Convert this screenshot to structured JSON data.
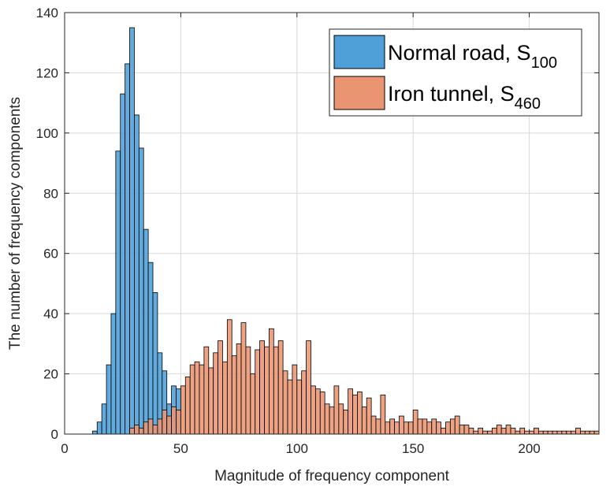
{
  "chart_data": {
    "type": "bar",
    "title": "",
    "xlabel": "Magnitude of frequency component",
    "ylabel": "The number of frequency components",
    "xlim": [
      0,
      230
    ],
    "ylim": [
      0,
      140
    ],
    "x_ticks": [
      0,
      50,
      100,
      150,
      200
    ],
    "y_ticks": [
      0,
      20,
      40,
      60,
      80,
      100,
      120,
      140
    ],
    "grid": true,
    "legend_position": "top-right",
    "bin_width": 2,
    "series": [
      {
        "name_text": "Normal road, S",
        "name_sub": "100",
        "color": "#4f9fd8",
        "bins": [
          [
            12,
            1
          ],
          [
            14,
            4
          ],
          [
            16,
            10
          ],
          [
            18,
            23
          ],
          [
            20,
            40
          ],
          [
            22,
            94
          ],
          [
            24,
            113
          ],
          [
            26,
            123
          ],
          [
            28,
            135
          ],
          [
            30,
            106
          ],
          [
            32,
            95
          ],
          [
            34,
            68
          ],
          [
            36,
            57
          ],
          [
            38,
            47
          ],
          [
            40,
            27
          ],
          [
            42,
            21
          ],
          [
            44,
            10
          ],
          [
            46,
            16
          ],
          [
            48,
            15
          ]
        ]
      },
      {
        "name_text": "Iron tunnel, S",
        "name_sub": "460",
        "color": "#e99572",
        "bins": [
          [
            28,
            2
          ],
          [
            30,
            3
          ],
          [
            32,
            2
          ],
          [
            34,
            4
          ],
          [
            36,
            5
          ],
          [
            38,
            3
          ],
          [
            40,
            5
          ],
          [
            42,
            8
          ],
          [
            44,
            6
          ],
          [
            46,
            9
          ],
          [
            48,
            8
          ],
          [
            50,
            16
          ],
          [
            52,
            19
          ],
          [
            54,
            23
          ],
          [
            56,
            24
          ],
          [
            58,
            23
          ],
          [
            60,
            29
          ],
          [
            62,
            22
          ],
          [
            64,
            27
          ],
          [
            66,
            31
          ],
          [
            68,
            24
          ],
          [
            70,
            38
          ],
          [
            72,
            26
          ],
          [
            74,
            30
          ],
          [
            76,
            37
          ],
          [
            78,
            29
          ],
          [
            80,
            20
          ],
          [
            82,
            28
          ],
          [
            84,
            31
          ],
          [
            86,
            29
          ],
          [
            88,
            35
          ],
          [
            90,
            29
          ],
          [
            92,
            31
          ],
          [
            94,
            21
          ],
          [
            96,
            18
          ],
          [
            98,
            23
          ],
          [
            100,
            18
          ],
          [
            102,
            21
          ],
          [
            104,
            31
          ],
          [
            106,
            16
          ],
          [
            108,
            15
          ],
          [
            110,
            14
          ],
          [
            112,
            10
          ],
          [
            114,
            9
          ],
          [
            116,
            16
          ],
          [
            118,
            10
          ],
          [
            120,
            8
          ],
          [
            122,
            15
          ],
          [
            124,
            13
          ],
          [
            126,
            14
          ],
          [
            128,
            9
          ],
          [
            130,
            12
          ],
          [
            132,
            6
          ],
          [
            134,
            5
          ],
          [
            136,
            13
          ],
          [
            138,
            4
          ],
          [
            140,
            5
          ],
          [
            142,
            4
          ],
          [
            144,
            6
          ],
          [
            146,
            4
          ],
          [
            148,
            4
          ],
          [
            150,
            8
          ],
          [
            152,
            5
          ],
          [
            154,
            5
          ],
          [
            156,
            4
          ],
          [
            158,
            5
          ],
          [
            160,
            4
          ],
          [
            162,
            2
          ],
          [
            164,
            4
          ],
          [
            166,
            5
          ],
          [
            168,
            6
          ],
          [
            170,
            3
          ],
          [
            172,
            3
          ],
          [
            174,
            2
          ],
          [
            176,
            1
          ],
          [
            178,
            2
          ],
          [
            180,
            1
          ],
          [
            182,
            1
          ],
          [
            184,
            2
          ],
          [
            186,
            3
          ],
          [
            188,
            2
          ],
          [
            190,
            3
          ],
          [
            192,
            2
          ],
          [
            194,
            1
          ],
          [
            196,
            2
          ],
          [
            198,
            1
          ],
          [
            200,
            1
          ],
          [
            202,
            2
          ],
          [
            204,
            1
          ],
          [
            206,
            1
          ],
          [
            208,
            1
          ],
          [
            210,
            1
          ],
          [
            212,
            1
          ],
          [
            214,
            1
          ],
          [
            216,
            1
          ],
          [
            218,
            1
          ],
          [
            220,
            2
          ],
          [
            222,
            1
          ],
          [
            224,
            1
          ],
          [
            226,
            1
          ],
          [
            228,
            1
          ]
        ]
      }
    ]
  }
}
